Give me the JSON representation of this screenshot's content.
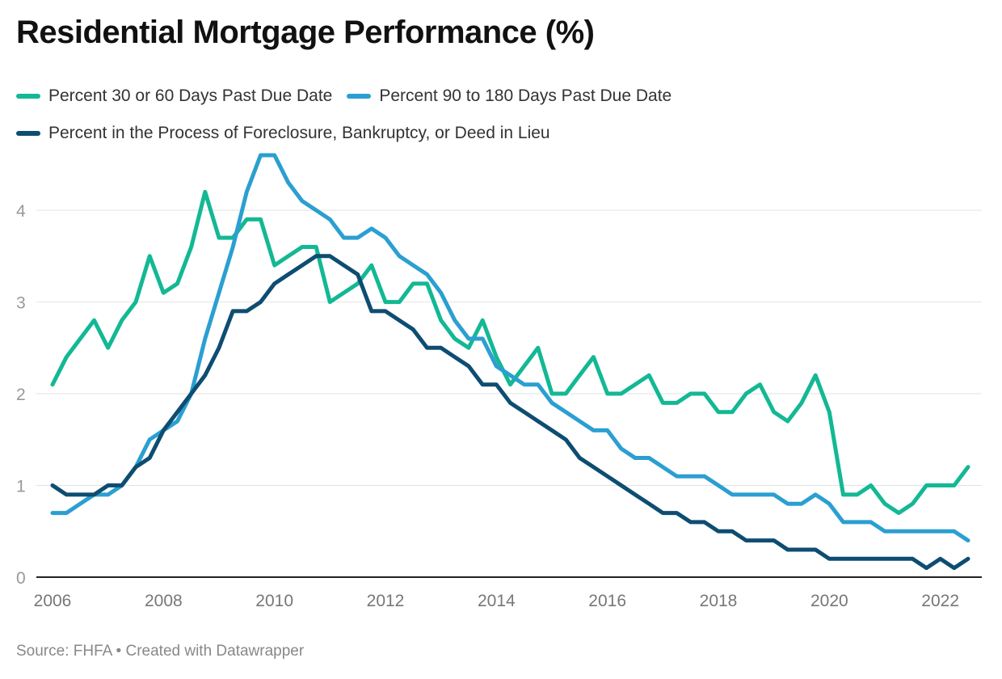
{
  "title": "Residential Mortgage Performance (%)",
  "source": "Source: FHFA • Created with Datawrapper",
  "chart_data": {
    "type": "line",
    "title": "Residential Mortgage Performance (%)",
    "xlabel": "",
    "ylabel": "",
    "xlim": [
      2006,
      2022.5
    ],
    "ylim": [
      0,
      4.6
    ],
    "yticks": [
      0,
      1,
      2,
      3,
      4
    ],
    "xticks": [
      2006,
      2008,
      2010,
      2012,
      2014,
      2016,
      2018,
      2020,
      2022
    ],
    "grid": true,
    "legend_position": "top-left",
    "x": [
      2006,
      2006.25,
      2006.5,
      2006.75,
      2007,
      2007.25,
      2007.5,
      2007.75,
      2008,
      2008.25,
      2008.5,
      2008.75,
      2009,
      2009.25,
      2009.5,
      2009.75,
      2010,
      2010.25,
      2010.5,
      2010.75,
      2011,
      2011.25,
      2011.5,
      2011.75,
      2012,
      2012.25,
      2012.5,
      2012.75,
      2013,
      2013.25,
      2013.5,
      2013.75,
      2014,
      2014.25,
      2014.5,
      2014.75,
      2015,
      2015.25,
      2015.5,
      2015.75,
      2016,
      2016.25,
      2016.5,
      2016.75,
      2017,
      2017.25,
      2017.5,
      2017.75,
      2018,
      2018.25,
      2018.5,
      2018.75,
      2019,
      2019.25,
      2019.5,
      2019.75,
      2020,
      2020.25,
      2020.5,
      2020.75,
      2021,
      2021.25,
      2021.5,
      2021.75,
      2022,
      2022.25,
      2022.5
    ],
    "series": [
      {
        "name": "Percent 30 or 60 Days Past Due Date",
        "color": "#13b894",
        "values": [
          2.1,
          2.4,
          2.6,
          2.8,
          2.5,
          2.8,
          3.0,
          3.5,
          3.1,
          3.2,
          3.6,
          4.2,
          3.7,
          3.7,
          3.9,
          3.9,
          3.4,
          3.5,
          3.6,
          3.6,
          3.0,
          3.1,
          3.2,
          3.4,
          3.0,
          3.0,
          3.2,
          3.2,
          2.8,
          2.6,
          2.5,
          2.8,
          2.4,
          2.1,
          2.3,
          2.5,
          2.0,
          2.0,
          2.2,
          2.4,
          2.0,
          2.0,
          2.1,
          2.2,
          1.9,
          1.9,
          2.0,
          2.0,
          1.8,
          1.8,
          2.0,
          2.1,
          1.8,
          1.7,
          1.9,
          2.2,
          1.8,
          0.9,
          0.9,
          1.0,
          0.8,
          0.7,
          0.8,
          1.0,
          1.0,
          1.0,
          1.2
        ]
      },
      {
        "name": "Percent 90 to 180 Days Past Due Date",
        "color": "#2b9fd1",
        "values": [
          0.7,
          0.7,
          0.8,
          0.9,
          0.9,
          1.0,
          1.2,
          1.5,
          1.6,
          1.7,
          2.0,
          2.6,
          3.1,
          3.6,
          4.2,
          4.6,
          4.6,
          4.3,
          4.1,
          4.0,
          3.9,
          3.7,
          3.7,
          3.8,
          3.7,
          3.5,
          3.4,
          3.3,
          3.1,
          2.8,
          2.6,
          2.6,
          2.3,
          2.2,
          2.1,
          2.1,
          1.9,
          1.8,
          1.7,
          1.6,
          1.6,
          1.4,
          1.3,
          1.3,
          1.2,
          1.1,
          1.1,
          1.1,
          1.0,
          0.9,
          0.9,
          0.9,
          0.9,
          0.8,
          0.8,
          0.9,
          0.8,
          0.6,
          0.6,
          0.6,
          0.5,
          0.5,
          0.5,
          0.5,
          0.5,
          0.5,
          0.4
        ]
      },
      {
        "name": "Percent in the Process of Foreclosure, Bankruptcy, or Deed in Lieu",
        "color": "#0e4d72",
        "values": [
          1.0,
          0.9,
          0.9,
          0.9,
          1.0,
          1.0,
          1.2,
          1.3,
          1.6,
          1.8,
          2.0,
          2.2,
          2.5,
          2.9,
          2.9,
          3.0,
          3.2,
          3.3,
          3.4,
          3.5,
          3.5,
          3.4,
          3.3,
          2.9,
          2.9,
          2.8,
          2.7,
          2.5,
          2.5,
          2.4,
          2.3,
          2.1,
          2.1,
          1.9,
          1.8,
          1.7,
          1.6,
          1.5,
          1.3,
          1.2,
          1.1,
          1.0,
          0.9,
          0.8,
          0.7,
          0.7,
          0.6,
          0.6,
          0.5,
          0.5,
          0.4,
          0.4,
          0.4,
          0.3,
          0.3,
          0.3,
          0.2,
          0.2,
          0.2,
          0.2,
          0.2,
          0.2,
          0.2,
          0.1,
          0.2,
          0.1,
          0.2
        ]
      }
    ]
  }
}
